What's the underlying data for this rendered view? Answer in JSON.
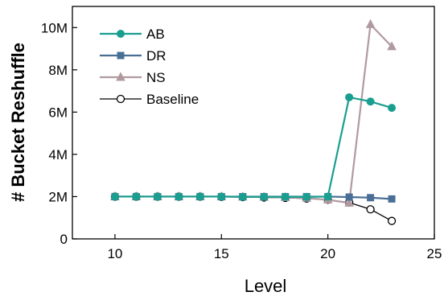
{
  "chart_data": {
    "type": "line",
    "xlabel": "Level",
    "ylabel": "# Bucket Reshuffle",
    "xlim": [
      8,
      25
    ],
    "ylim": [
      0,
      11000000
    ],
    "x_ticks": [
      10,
      15,
      20,
      25
    ],
    "x_tick_labels": [
      "10",
      "15",
      "20",
      "25"
    ],
    "y_ticks": [
      0,
      2000000,
      4000000,
      6000000,
      8000000,
      10000000
    ],
    "y_tick_labels": [
      "0",
      "2M",
      "4M",
      "6M",
      "8M",
      "10M"
    ],
    "grid": false,
    "legend_position": "top-left",
    "series": [
      {
        "name": "AB",
        "color": "#1a9e8f",
        "marker": "circle-filled",
        "x": [
          10,
          11,
          12,
          13,
          14,
          15,
          16,
          17,
          18,
          19,
          20,
          21,
          22,
          23
        ],
        "y": [
          2000000,
          2000000,
          2000000,
          2000000,
          2000000,
          2000000,
          1990000,
          1990000,
          1990000,
          1990000,
          2000000,
          6700000,
          6500000,
          6200000
        ]
      },
      {
        "name": "DR",
        "color": "#4a6f96",
        "marker": "square-filled",
        "x": [
          10,
          11,
          12,
          13,
          14,
          15,
          16,
          17,
          18,
          19,
          20,
          21,
          22,
          23
        ],
        "y": [
          2000000,
          2000000,
          2000000,
          2000000,
          2000000,
          2000000,
          2000000,
          2000000,
          2000000,
          2000000,
          2000000,
          1980000,
          1950000,
          1890000
        ]
      },
      {
        "name": "NS",
        "color": "#b09aa0",
        "marker": "triangle-filled",
        "x": [
          10,
          11,
          12,
          13,
          14,
          15,
          16,
          17,
          18,
          19,
          20,
          21,
          22,
          23
        ],
        "y": [
          2000000,
          2000000,
          2000000,
          2000000,
          2000000,
          2000000,
          1990000,
          1980000,
          1960000,
          1930000,
          1850000,
          1700000,
          10150000,
          9100000
        ]
      },
      {
        "name": "Baseline",
        "color": "#000000",
        "marker": "circle-open",
        "x": [
          10,
          11,
          12,
          13,
          14,
          15,
          16,
          17,
          18,
          19,
          20,
          21,
          22,
          23
        ],
        "y": [
          2000000,
          2000000,
          2000000,
          2000000,
          2000000,
          1990000,
          1980000,
          1960000,
          1940000,
          1910000,
          1850000,
          1720000,
          1400000,
          850000
        ]
      }
    ]
  }
}
